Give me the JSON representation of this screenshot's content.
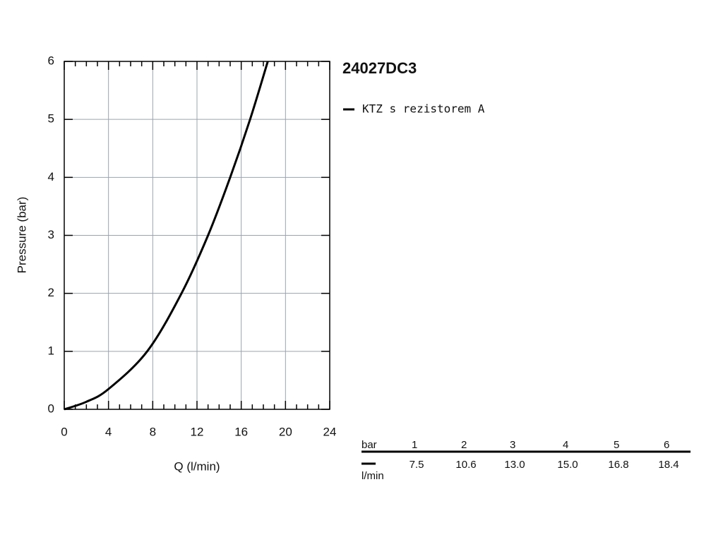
{
  "chart_data": {
    "type": "line",
    "title": "24027DC3",
    "x_label": "Q (l/min)",
    "y_label": "Pressure (bar)",
    "series": [
      {
        "name": "KTZ s rezistorem A",
        "color": "#000000",
        "x": [
          0,
          2,
          4,
          7.5,
          10.6,
          13,
          15,
          16.8,
          18.4
        ],
        "values": [
          0,
          0.13,
          0.35,
          1,
          2,
          3,
          4,
          5,
          6
        ]
      }
    ],
    "xlim": [
      0,
      24
    ],
    "ylim": [
      0,
      6
    ],
    "xticks": [
      0,
      4,
      8,
      12,
      16,
      20,
      24
    ],
    "yticks": [
      0,
      1,
      2,
      3,
      4,
      5,
      6
    ],
    "xminorticks": [
      1,
      2,
      3,
      5,
      6,
      7,
      9,
      10,
      11,
      13,
      14,
      15,
      17,
      18,
      19,
      21,
      22,
      23
    ],
    "grid": true
  },
  "table": {
    "row_label": "bar",
    "unit_label": "l/min",
    "pressure": [
      1,
      2,
      3,
      4,
      5,
      6
    ],
    "flow": [
      "7.5",
      "10.6",
      "13.0",
      "15.0",
      "16.8",
      "18.4"
    ]
  }
}
